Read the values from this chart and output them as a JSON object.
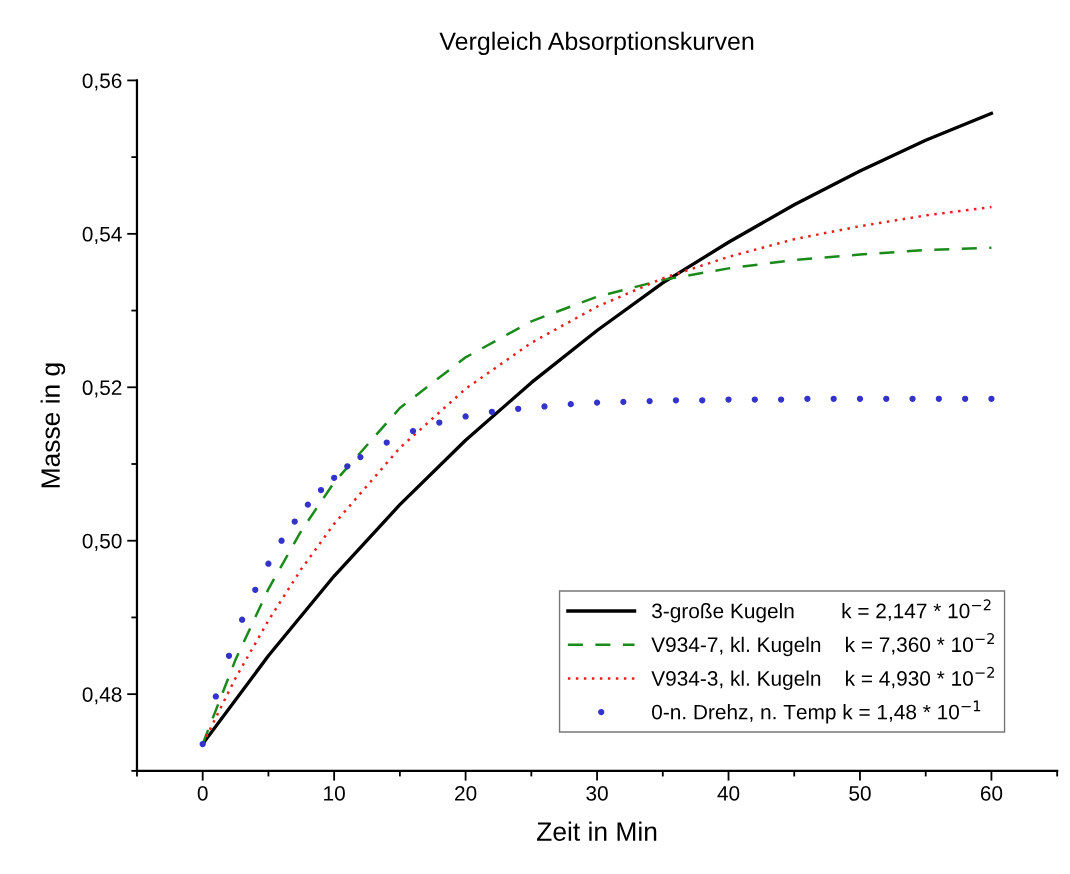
{
  "chart_data": {
    "type": "line",
    "title": "Vergleich Absorptionskurven",
    "xlabel": "Zeit in Min",
    "ylabel": "Masse in g",
    "xlim": [
      -5,
      65
    ],
    "xticks": [
      0,
      10,
      20,
      30,
      40,
      50,
      60
    ],
    "ylim": [
      0.47,
      0.56
    ],
    "yticks": [
      {
        "value": 0.48,
        "label": "0,48"
      },
      {
        "value": 0.5,
        "label": "0,50"
      },
      {
        "value": 0.52,
        "label": "0,52"
      },
      {
        "value": 0.54,
        "label": "0,54"
      },
      {
        "value": 0.56,
        "label": "0,56"
      }
    ],
    "grid": false,
    "legend": "bottom right",
    "series": [
      {
        "name": "3-große Kugeln        k = 2,147 * 10$^{−2}$",
        "color": "#000000",
        "line_style": "solid",
        "x": [
          0,
          5,
          10,
          15,
          20,
          25,
          30,
          35,
          40,
          45,
          50,
          55,
          60
        ],
        "values": [
          0.4735,
          0.485,
          0.4954,
          0.5047,
          0.5131,
          0.5206,
          0.5274,
          0.5336,
          0.5389,
          0.5438,
          0.5482,
          0.5522,
          0.5557
        ]
      },
      {
        "name": "V934-7, kl. Kugeln    k = 7,360 * 10$^{−2}$",
        "color": "#1a8a1a",
        "line_style": "dashed",
        "x": [
          0,
          2.5,
          5,
          7.5,
          10,
          15,
          20,
          25,
          30,
          35,
          40,
          45,
          50,
          55,
          60
        ],
        "values": [
          0.4735,
          0.4845,
          0.4937,
          0.5013,
          0.5076,
          0.5173,
          0.5239,
          0.5286,
          0.5318,
          0.534,
          0.5355,
          0.5366,
          0.5373,
          0.5379,
          0.5382
        ]
      },
      {
        "name": "V934-3, kl. Kugeln    k = 4,930 * 10$^{−2}$",
        "color": "#e8201a",
        "line_style": "dotted",
        "x": [
          0,
          2.5,
          5,
          7.5,
          10,
          15,
          20,
          25,
          30,
          35,
          40,
          45,
          50,
          55,
          60
        ],
        "values": [
          0.4735,
          0.4821,
          0.4896,
          0.4963,
          0.5022,
          0.5121,
          0.5198,
          0.5258,
          0.5305,
          0.5342,
          0.537,
          0.5393,
          0.541,
          0.5424,
          0.5435
        ]
      },
      {
        "name": "0-n. Drehz, n. Temp k = 1,48 * 10$^{−1}$",
        "type": "scatter",
        "marker": "circle",
        "color": "#3333cc",
        "x": [
          0,
          1,
          2,
          3,
          4,
          5,
          6,
          7,
          8,
          9,
          10,
          11,
          12,
          14,
          16,
          18,
          20,
          22,
          24,
          26,
          28,
          30,
          32,
          34,
          36,
          38,
          40,
          42,
          44,
          46,
          48,
          50,
          52,
          54,
          56,
          58,
          60
        ],
        "values": [
          0.4735,
          0.4797,
          0.485,
          0.4897,
          0.4936,
          0.497,
          0.5,
          0.5025,
          0.5047,
          0.5066,
          0.5082,
          0.5097,
          0.5109,
          0.5128,
          0.5143,
          0.5154,
          0.5162,
          0.5168,
          0.5172,
          0.5175,
          0.5178,
          0.518,
          0.5181,
          0.5182,
          0.5183,
          0.5183,
          0.5184,
          0.5184,
          0.5184,
          0.5185,
          0.5185,
          0.5185,
          0.5185,
          0.5185,
          0.5185,
          0.5185,
          0.5185
        ]
      }
    ]
  }
}
